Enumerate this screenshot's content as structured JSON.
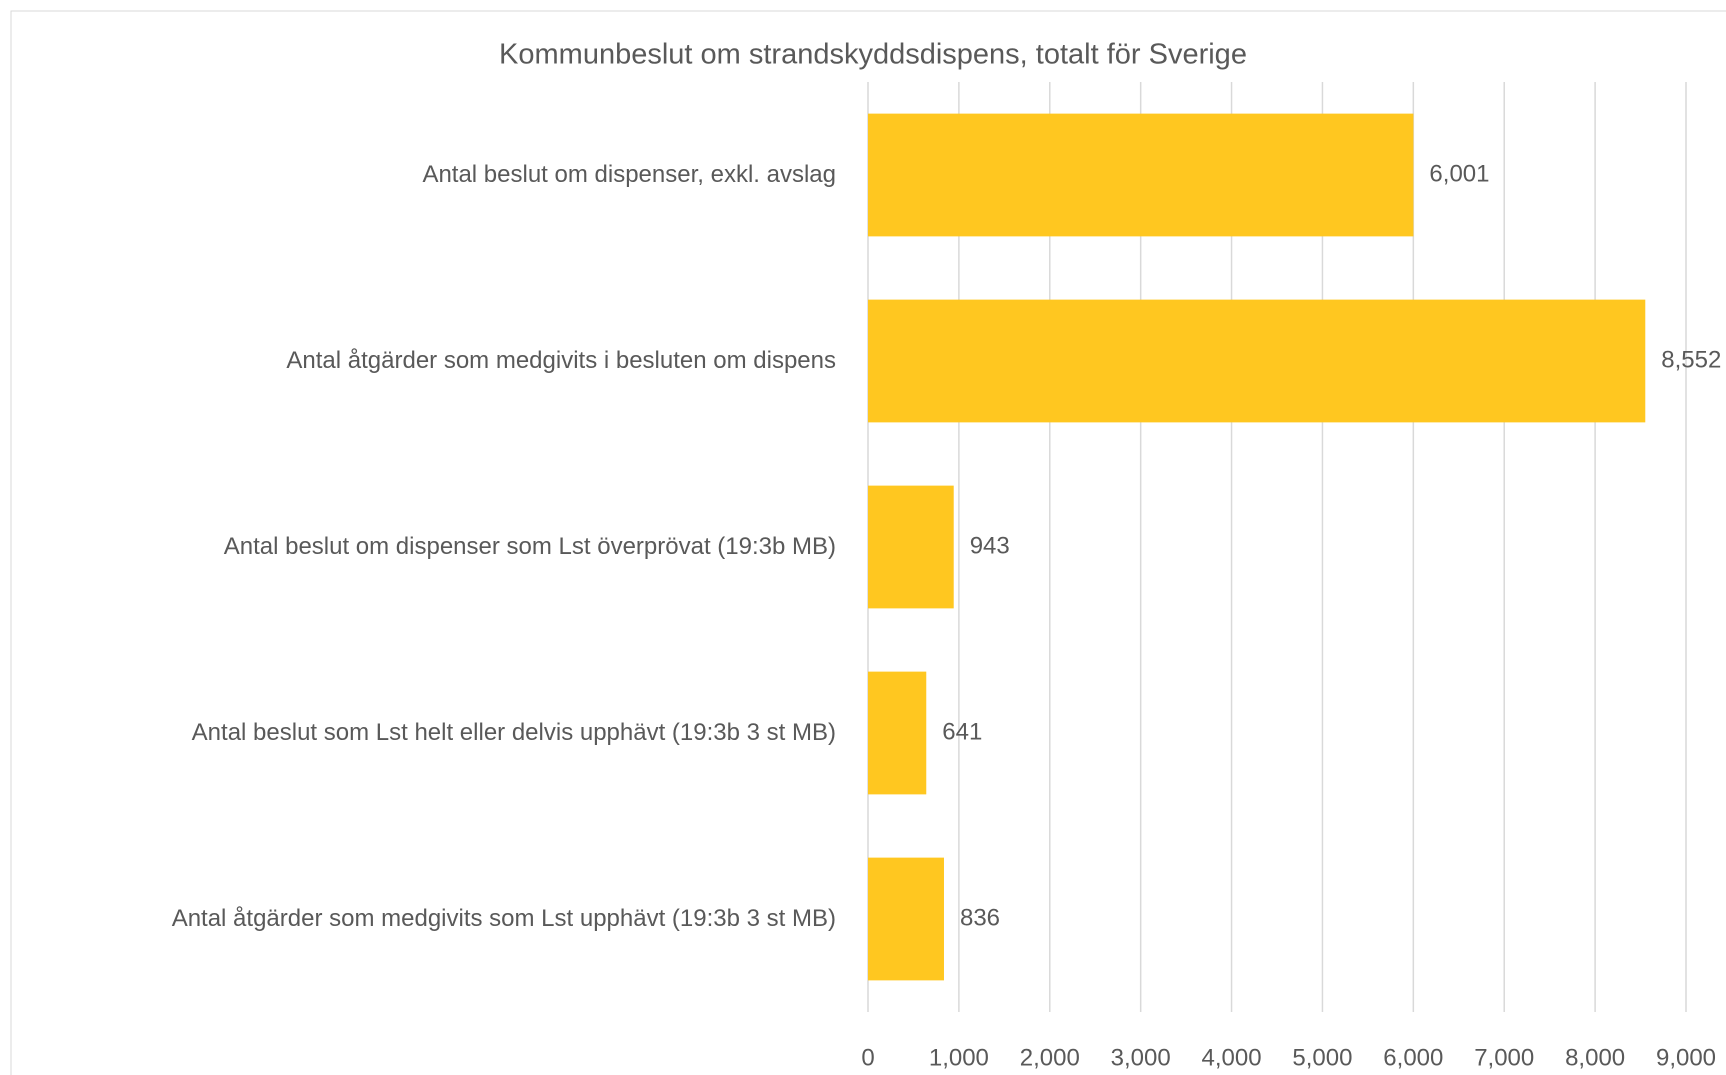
{
  "chart_data": {
    "type": "barh",
    "title": "Kommunbeslut om strandskyddsdispens, totalt för Sverige",
    "categories": [
      "Antal beslut om dispenser, exkl. avslag",
      "Antal åtgärder som medgivits i besluten om dispens",
      "Antal beslut om dispenser som Lst överprövat (19:3b MB)",
      "Antal beslut som Lst helt eller delvis upphävt (19:3b 3 st MB)",
      "Antal åtgärder som medgivits som Lst upphävt (19:3b 3 st MB)"
    ],
    "values": [
      6001,
      8552,
      943,
      641,
      836
    ],
    "value_labels": [
      "6,001",
      "8,552",
      "943",
      "641",
      "836"
    ],
    "color": "#ffc720",
    "xlim": [
      0,
      9000
    ],
    "xticks": [
      0,
      {
        "value": 1000,
        "label": "1,000"
      },
      {
        "value": 2000,
        "label": "2,000"
      },
      {
        "value": 3000,
        "label": "3,000"
      },
      {
        "value": 4000,
        "label": "4,000"
      },
      {
        "value": 5000,
        "label": "5,000"
      },
      {
        "value": 6000,
        "label": "6,000"
      },
      {
        "value": 7000,
        "label": "7,000"
      },
      {
        "value": 8000,
        "label": "8,000"
      },
      {
        "value": 9000,
        "label": "9,000"
      }
    ],
    "grid": true
  }
}
